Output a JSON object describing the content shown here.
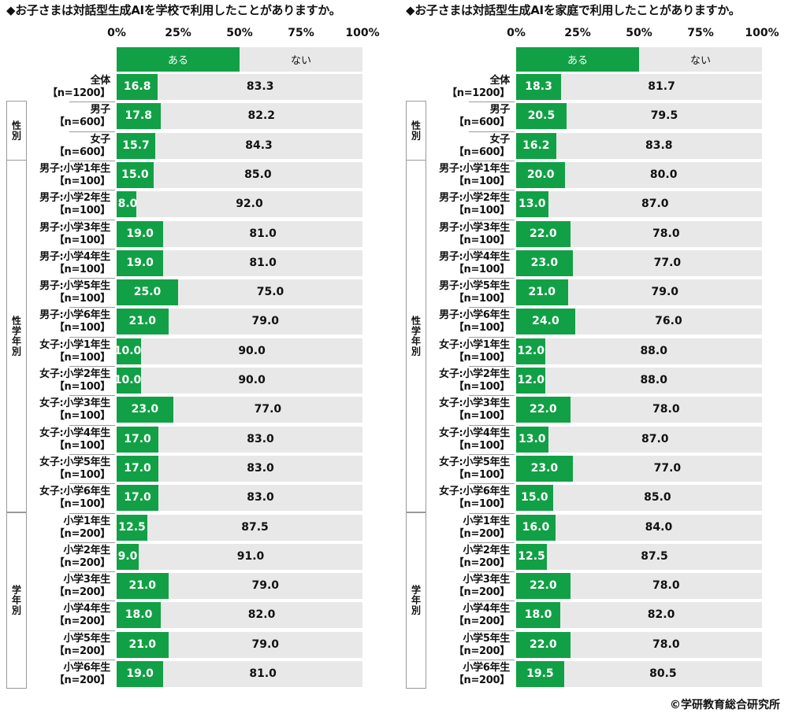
{
  "copyright": "©学研教育総合研究所",
  "ticks": [
    "0%",
    "25%",
    "50%",
    "75%",
    "100%"
  ],
  "legend": {
    "ari": "ある",
    "nai": "ない"
  },
  "colors": {
    "ari": "#12a046",
    "nai": "#e8e8e8"
  },
  "row_labels": [
    [
      "全体",
      "【n=1200】"
    ],
    [
      "男子",
      "【n=600】"
    ],
    [
      "女子",
      "【n=600】"
    ],
    [
      "男子:小学1年生",
      "【n=100】"
    ],
    [
      "男子:小学2年生",
      "【n=100】"
    ],
    [
      "男子:小学3年生",
      "【n=100】"
    ],
    [
      "男子:小学4年生",
      "【n=100】"
    ],
    [
      "男子:小学5年生",
      "【n=100】"
    ],
    [
      "男子:小学6年生",
      "【n=100】"
    ],
    [
      "女子:小学1年生",
      "【n=100】"
    ],
    [
      "女子:小学2年生",
      "【n=100】"
    ],
    [
      "女子:小学3年生",
      "【n=100】"
    ],
    [
      "女子:小学4年生",
      "【n=100】"
    ],
    [
      "女子:小学5年生",
      "【n=100】"
    ],
    [
      "女子:小学6年生",
      "【n=100】"
    ],
    [
      "小学1年生",
      "【n=200】"
    ],
    [
      "小学2年生",
      "【n=200】"
    ],
    [
      "小学3年生",
      "【n=200】"
    ],
    [
      "小学4年生",
      "【n=200】"
    ],
    [
      "小学5年生",
      "【n=200】"
    ],
    [
      "小学6年生",
      "【n=200】"
    ]
  ],
  "groups": [
    {
      "label": "性別",
      "first": 1,
      "last": 2
    },
    {
      "label": "性学年別",
      "first": 3,
      "last": 14
    },
    {
      "label": "学年別",
      "first": 15,
      "last": 20
    }
  ],
  "chart_data": [
    {
      "type": "bar",
      "title": "◆お子さまは対話型生成AIを学校で利用したことがありますか。",
      "stacked": true,
      "orientation": "horizontal",
      "xlim": [
        0,
        100
      ],
      "series": [
        {
          "name": "ある",
          "values": [
            16.8,
            17.8,
            15.7,
            15.0,
            8.0,
            19.0,
            19.0,
            25.0,
            21.0,
            10.0,
            10.0,
            23.0,
            17.0,
            17.0,
            17.0,
            12.5,
            9.0,
            21.0,
            18.0,
            21.0,
            19.0
          ]
        },
        {
          "name": "ない",
          "values": [
            83.3,
            82.2,
            84.3,
            85.0,
            92.0,
            81.0,
            81.0,
            75.0,
            79.0,
            90.0,
            90.0,
            77.0,
            83.0,
            83.0,
            83.0,
            87.5,
            91.0,
            79.0,
            82.0,
            79.0,
            81.0
          ]
        }
      ],
      "labels_ari": [
        "16.8",
        "17.8",
        "15.7",
        "15.0",
        "8.0",
        "19.0",
        "19.0",
        "25.0",
        "21.0",
        "10.0",
        "10.0",
        "23.0",
        "17.0",
        "17.0",
        "17.0",
        "12.5",
        "9.0",
        "21.0",
        "18.0",
        "21.0",
        "19.0"
      ],
      "labels_nai": [
        "83.3",
        "82.2",
        "84.3",
        "85.0",
        "92.0",
        "81.0",
        "81.0",
        "75.0",
        "79.0",
        "90.0",
        "90.0",
        "77.0",
        "83.0",
        "83.0",
        "83.0",
        "87.5",
        "91.0",
        "79.0",
        "82.0",
        "79.0",
        "81.0"
      ]
    },
    {
      "type": "bar",
      "title": "◆お子さまは対話型生成AIを家庭で利用したことがありますか。",
      "stacked": true,
      "orientation": "horizontal",
      "xlim": [
        0,
        100
      ],
      "series": [
        {
          "name": "ある",
          "values": [
            18.3,
            20.5,
            16.2,
            20.0,
            13.0,
            22.0,
            23.0,
            21.0,
            24.0,
            12.0,
            12.0,
            22.0,
            13.0,
            23.0,
            15.0,
            16.0,
            12.5,
            22.0,
            18.0,
            22.0,
            19.5
          ]
        },
        {
          "name": "ない",
          "values": [
            81.7,
            79.5,
            83.8,
            80.0,
            87.0,
            78.0,
            77.0,
            79.0,
            76.0,
            88.0,
            88.0,
            78.0,
            87.0,
            77.0,
            85.0,
            84.0,
            87.5,
            78.0,
            82.0,
            78.0,
            80.5
          ]
        }
      ],
      "labels_ari": [
        "18.3",
        "20.5",
        "16.2",
        "20.0",
        "13.0",
        "22.0",
        "23.0",
        "21.0",
        "24.0",
        "12.0",
        "12.0",
        "22.0",
        "13.0",
        "23.0",
        "15.0",
        "16.0",
        "12.5",
        "22.0",
        "18.0",
        "22.0",
        "19.5"
      ],
      "labels_nai": [
        "81.7",
        "79.5",
        "83.8",
        "80.0",
        "87.0",
        "78.0",
        "77.0",
        "79.0",
        "76.0",
        "88.0",
        "88.0",
        "78.0",
        "87.0",
        "77.0",
        "85.0",
        "84.0",
        "87.5",
        "78.0",
        "82.0",
        "78.0",
        "80.5"
      ]
    }
  ]
}
